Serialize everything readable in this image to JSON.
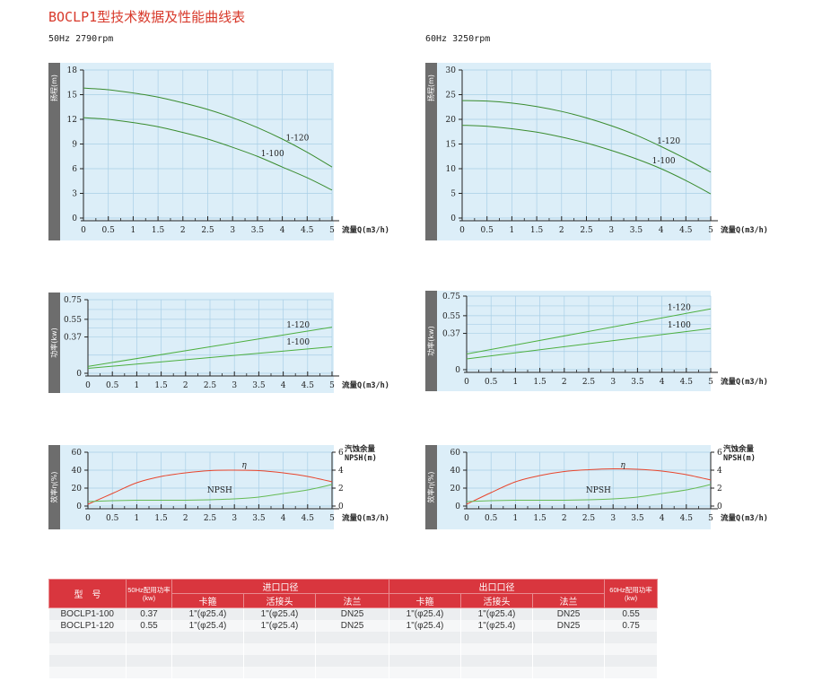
{
  "page": {
    "title": "BOCLP1型技术数据及性能曲线表",
    "left_condition": "50Hz  2790rpm",
    "right_condition": "60Hz  3250rpm"
  },
  "colors": {
    "title": "#d8392b",
    "head_curve": "#3a8c2f",
    "power_curve": "#4caf3f",
    "efficiency_curve": "#e8452c",
    "npsh_curve": "#66bb55",
    "panel": "#dceef8",
    "axis_strip": "#6d6d6d",
    "table_header": "#d9363e"
  },
  "chart_data": [
    {
      "id": "head-50hz",
      "type": "line",
      "ylabel": "扬程(m)",
      "xlabel": "流量Q(m3/h)",
      "xlim": [
        0,
        5
      ],
      "ylim": [
        0,
        18
      ],
      "x_ticks": [
        "0",
        "0.5",
        "1",
        "1.5",
        "2",
        "2.5",
        "3",
        "3.5",
        "4",
        "4.5",
        "5"
      ],
      "y_ticks": [
        "0",
        "3",
        "6",
        "9",
        "12",
        "15",
        "18"
      ],
      "series": [
        {
          "name": "1-120",
          "x": [
            0,
            0.5,
            1,
            1.5,
            2,
            2.5,
            3,
            3.5,
            4,
            4.5,
            5
          ],
          "values": [
            15.8,
            15.6,
            15.2,
            14.7,
            14.0,
            13.2,
            12.2,
            11.0,
            9.6,
            8.0,
            6.2
          ]
        },
        {
          "name": "1-100",
          "x": [
            0,
            0.5,
            1,
            1.5,
            2,
            2.5,
            3,
            3.5,
            4,
            4.5,
            5
          ],
          "values": [
            12.2,
            12.0,
            11.6,
            11.1,
            10.4,
            9.6,
            8.6,
            7.5,
            6.2,
            4.9,
            3.4
          ]
        }
      ]
    },
    {
      "id": "head-60hz",
      "type": "line",
      "ylabel": "扬程(m)",
      "xlabel": "流量Q(m3/h)",
      "xlim": [
        0,
        5
      ],
      "ylim": [
        0,
        30
      ],
      "x_ticks": [
        "0",
        "0.5",
        "1",
        "1.5",
        "2",
        "2.5",
        "3",
        "3.5",
        "4",
        "4.5",
        "5"
      ],
      "y_ticks": [
        "0",
        "5",
        "10",
        "15",
        "20",
        "25",
        "30"
      ],
      "series": [
        {
          "name": "1-120",
          "x": [
            0,
            0.5,
            1,
            1.5,
            2,
            2.5,
            3,
            3.5,
            4,
            4.5,
            5
          ],
          "values": [
            23.8,
            23.7,
            23.3,
            22.6,
            21.6,
            20.3,
            18.7,
            16.8,
            14.5,
            12.0,
            9.3
          ]
        },
        {
          "name": "1-100",
          "x": [
            0,
            0.5,
            1,
            1.5,
            2,
            2.5,
            3,
            3.5,
            4,
            4.5,
            5
          ],
          "values": [
            18.8,
            18.6,
            18.1,
            17.4,
            16.4,
            15.2,
            13.7,
            12.0,
            10.0,
            7.6,
            4.9
          ]
        }
      ]
    },
    {
      "id": "power-50hz",
      "type": "line",
      "ylabel": "功率(kw)",
      "xlabel": "流量Q(m3/h)",
      "xlim": [
        0,
        5
      ],
      "ylim": [
        0,
        0.75
      ],
      "x_ticks": [
        "0",
        "0.5",
        "1",
        "1.5",
        "2",
        "2.5",
        "3",
        "3.5",
        "4",
        "4.5",
        "5"
      ],
      "y_ticks": [
        "0",
        "0.37",
        "0.55",
        "0.75"
      ],
      "y_tick_values": [
        0,
        0.37,
        0.55,
        0.75
      ],
      "series": [
        {
          "name": "1-120",
          "x": [
            0,
            5
          ],
          "values": [
            0.07,
            0.47
          ]
        },
        {
          "name": "1-100",
          "x": [
            0,
            5
          ],
          "values": [
            0.05,
            0.27
          ]
        }
      ]
    },
    {
      "id": "power-60hz",
      "type": "line",
      "ylabel": "功率(kw)",
      "xlabel": "流量Q(m3/h)",
      "xlim": [
        0,
        5
      ],
      "ylim": [
        0,
        0.75
      ],
      "x_ticks": [
        "0",
        "0.5",
        "1",
        "1.5",
        "2",
        "2.5",
        "3",
        "3.5",
        "4",
        "4.5",
        "5"
      ],
      "y_ticks": [
        "0",
        "0.37",
        "0.55",
        "0.75"
      ],
      "y_tick_values": [
        0,
        0.37,
        0.55,
        0.75
      ],
      "series": [
        {
          "name": "1-120",
          "x": [
            0,
            5
          ],
          "values": [
            0.16,
            0.62
          ]
        },
        {
          "name": "1-100",
          "x": [
            0,
            5
          ],
          "values": [
            0.11,
            0.42
          ]
        }
      ]
    },
    {
      "id": "eff-50hz",
      "type": "line",
      "ylabel": "效率η(%)",
      "xlabel": "流量Q(m3/h)",
      "y2label_1": "汽蚀余量",
      "y2label_2": "NPSH(m)",
      "xlim": [
        0,
        5
      ],
      "ylim": [
        0,
        60
      ],
      "y2lim": [
        0,
        6
      ],
      "x_ticks": [
        "0",
        "0.5",
        "1",
        "1.5",
        "2",
        "2.5",
        "3",
        "3.5",
        "4",
        "4.5",
        "5"
      ],
      "y_ticks": [
        "0",
        "20",
        "40",
        "60"
      ],
      "y2_ticks": [
        "0",
        "2",
        "4",
        "6"
      ],
      "series": [
        {
          "name": "η",
          "axis": "left",
          "x": [
            0,
            0.5,
            1,
            1.5,
            2,
            2.5,
            3,
            3.5,
            4,
            4.5,
            5
          ],
          "values": [
            2,
            14,
            26,
            33,
            37,
            39.5,
            40,
            39.5,
            37,
            33,
            27
          ]
        },
        {
          "name": "NPSH",
          "axis": "right",
          "x": [
            0,
            0.5,
            1,
            1.5,
            2,
            2.5,
            3,
            3.5,
            4,
            4.5,
            5
          ],
          "values": [
            0.5,
            0.6,
            0.65,
            0.65,
            0.65,
            0.7,
            0.8,
            1.0,
            1.4,
            1.8,
            2.4
          ]
        }
      ]
    },
    {
      "id": "eff-60hz",
      "type": "line",
      "ylabel": "效率η(%)",
      "xlabel": "流量Q(m3/h)",
      "y2label_1": "汽蚀余量",
      "y2label_2": "NPSH(m)",
      "xlim": [
        0,
        5
      ],
      "ylim": [
        0,
        60
      ],
      "y2lim": [
        0,
        6
      ],
      "x_ticks": [
        "0",
        "0.5",
        "1",
        "1.5",
        "2",
        "2.5",
        "3",
        "3.5",
        "4",
        "4.5",
        "5"
      ],
      "y_ticks": [
        "0",
        "20",
        "40",
        "60"
      ],
      "y2_ticks": [
        "0",
        "2",
        "4",
        "6"
      ],
      "series": [
        {
          "name": "η",
          "axis": "left",
          "x": [
            0,
            0.5,
            1,
            1.5,
            2,
            2.5,
            3,
            3.5,
            4,
            4.5,
            5
          ],
          "values": [
            2,
            15,
            27,
            34,
            38.5,
            40.5,
            41.5,
            41,
            39,
            35,
            29
          ]
        },
        {
          "name": "NPSH",
          "axis": "right",
          "x": [
            0,
            0.5,
            1,
            1.5,
            2,
            2.5,
            3,
            3.5,
            4,
            4.5,
            5
          ],
          "values": [
            0.5,
            0.6,
            0.65,
            0.65,
            0.65,
            0.7,
            0.8,
            1.0,
            1.4,
            1.8,
            2.4
          ]
        }
      ]
    }
  ],
  "table": {
    "header": {
      "model": "型　号",
      "power50": "50Hz配用功率(kw)",
      "inlet": "进口口径",
      "outlet": "出口口径",
      "power60": "60Hz配用功率(kw)",
      "clamp": "卡箍",
      "union": "活接头",
      "flange": "法兰"
    },
    "rows": [
      {
        "model": "BOCLP1-100",
        "p50": "0.37",
        "in_clamp": "1\"(φ25.4)",
        "in_union": "1\"(φ25.4)",
        "in_flange": "DN25",
        "out_clamp": "1\"(φ25.4)",
        "out_union": "1\"(φ25.4)",
        "out_flange": "DN25",
        "p60": "0.55"
      },
      {
        "model": "BOCLP1-120",
        "p50": "0.55",
        "in_clamp": "1\"(φ25.4)",
        "in_union": "1\"(φ25.4)",
        "in_flange": "DN25",
        "out_clamp": "1\"(φ25.4)",
        "out_union": "1\"(φ25.4)",
        "out_flange": "DN25",
        "p60": "0.75"
      },
      {
        "model": "",
        "p50": "",
        "in_clamp": "",
        "in_union": "",
        "in_flange": "",
        "out_clamp": "",
        "out_union": "",
        "out_flange": "",
        "p60": ""
      },
      {
        "model": "",
        "p50": "",
        "in_clamp": "",
        "in_union": "",
        "in_flange": "",
        "out_clamp": "",
        "out_union": "",
        "out_flange": "",
        "p60": ""
      },
      {
        "model": "",
        "p50": "",
        "in_clamp": "",
        "in_union": "",
        "in_flange": "",
        "out_clamp": "",
        "out_union": "",
        "out_flange": "",
        "p60": ""
      },
      {
        "model": "",
        "p50": "",
        "in_clamp": "",
        "in_union": "",
        "in_flange": "",
        "out_clamp": "",
        "out_union": "",
        "out_flange": "",
        "p60": ""
      }
    ]
  }
}
